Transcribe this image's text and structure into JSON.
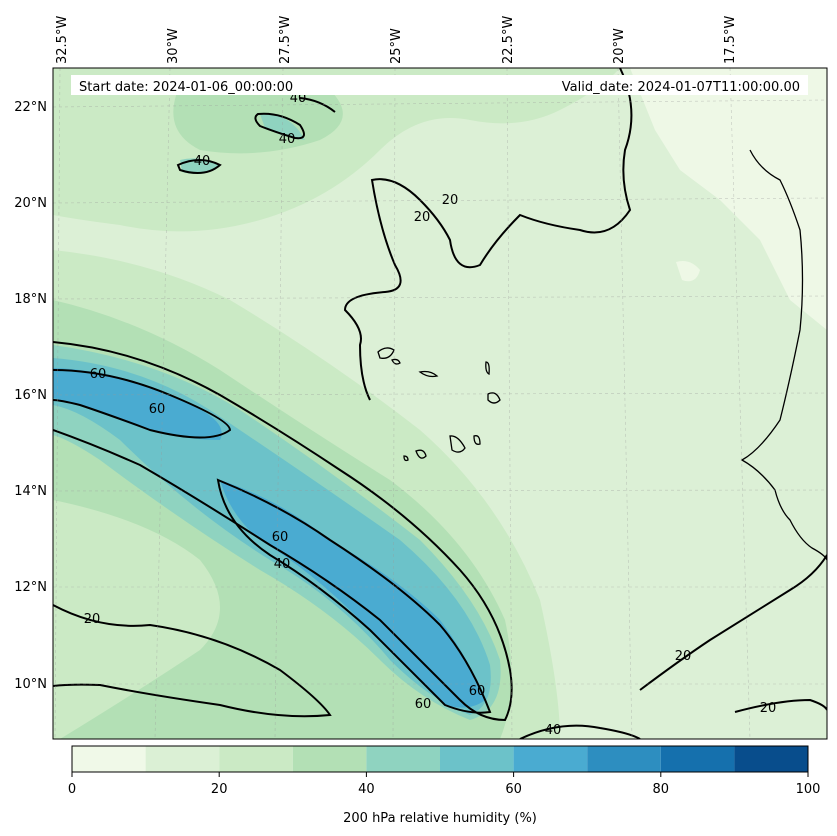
{
  "header": {
    "start_date": "Start date: 2024-01-06_00:00:00",
    "valid_date": "Valid_date: 2024-01-07T11:00:00.00"
  },
  "map": {
    "longitude_labels": [
      "32.5°W",
      "30°W",
      "27.5°W",
      "25°W",
      "22.5°W",
      "20°W",
      "17.5°W"
    ],
    "latitude_labels": [
      "22°N",
      "20°N",
      "18°N",
      "16°N",
      "14°N",
      "12°N",
      "10°N"
    ],
    "contour_labels": [
      "40",
      "40",
      "40",
      "20",
      "20",
      "60",
      "60",
      "60",
      "40",
      "20",
      "60",
      "60",
      "40",
      "20",
      "20"
    ]
  },
  "colorbar": {
    "label": "200 hPa relative humidity (%)",
    "ticks": [
      "0",
      "20",
      "40",
      "60",
      "80",
      "100"
    ],
    "range": [
      0,
      100
    ],
    "levels": [
      0,
      10,
      20,
      30,
      40,
      50,
      60,
      70,
      80,
      90,
      100
    ],
    "colors": [
      "#f0f9e8",
      "#dbf0d5",
      "#cbeac5",
      "#b3e0b5",
      "#8fd3c0",
      "#6cc2c9",
      "#4aabd1",
      "#2d8ec0",
      "#1570ad",
      "#084d8c"
    ]
  },
  "chart_data": {
    "type": "heatmap",
    "variable": "200 hPa relative humidity (%)",
    "contour_levels": [
      20,
      40,
      60
    ],
    "colorbar_range": [
      0,
      100
    ]
  }
}
